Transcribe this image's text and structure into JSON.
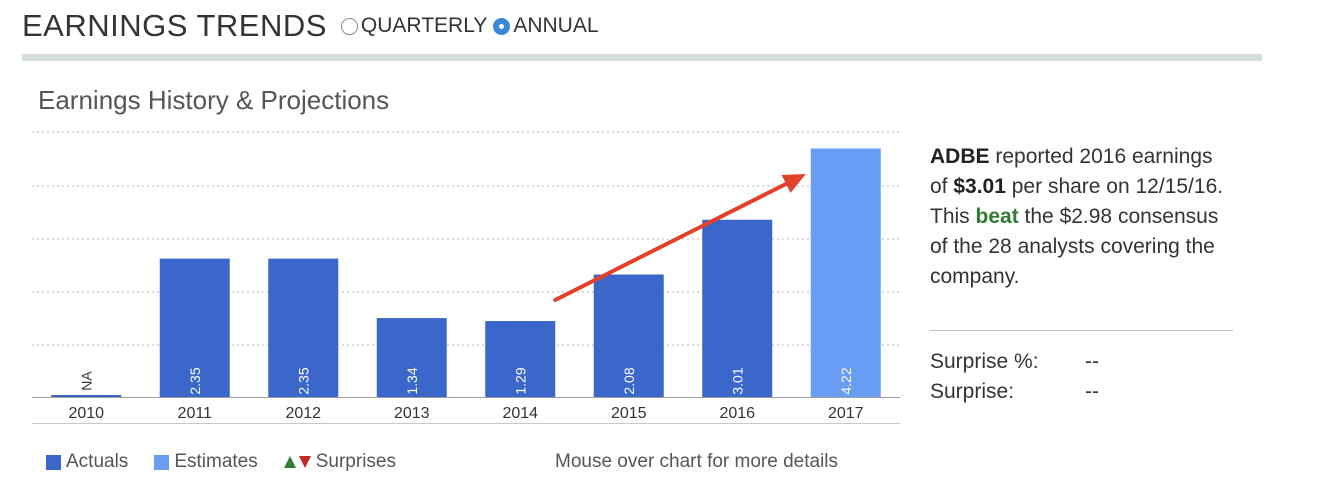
{
  "header": {
    "title": "EARNINGS TRENDS",
    "options": [
      {
        "label": "QUARTERLY",
        "checked": false
      },
      {
        "label": "ANNUAL",
        "checked": true
      }
    ]
  },
  "panel": {
    "title": "Earnings History & Projections"
  },
  "colors": {
    "actual": "#3a67c9",
    "estimate": "#699cf3",
    "annotation_arrow": "#e2402b",
    "beat": "#2e7d32",
    "surprise_up": "#2e7d32",
    "surprise_down": "#c62828"
  },
  "chart_data": {
    "type": "bar",
    "title": "Earnings History & Projections",
    "xlabel": "",
    "ylabel": "",
    "ylim": [
      0,
      4.5
    ],
    "grid": true,
    "categories": [
      "2010",
      "2011",
      "2012",
      "2013",
      "2014",
      "2015",
      "2016",
      "2017"
    ],
    "series": [
      {
        "name": "Actuals",
        "values": [
          null,
          2.35,
          2.35,
          1.34,
          1.29,
          2.08,
          3.01,
          null
        ]
      },
      {
        "name": "Estimates",
        "values": [
          null,
          null,
          null,
          null,
          null,
          null,
          null,
          4.22
        ]
      }
    ],
    "bar_labels": [
      "NA",
      "2.35",
      "2.35",
      "1.34",
      "1.29",
      "2.08",
      "3.01",
      "4.22"
    ],
    "annotation": "red upward trend arrow from 2014 toward 2017"
  },
  "summary": {
    "ticker": "ADBE",
    "text_1": " reported 2016 earnings of ",
    "eps": "$3.01",
    "text_2": " per share on 12/15/16. This ",
    "result": "beat",
    "text_3": " the $2.98 consensus of the 28 analysts covering the company."
  },
  "stats": {
    "surprise_pct_label": "Surprise %:",
    "surprise_pct_value": "--",
    "surprise_label": "Surprise:",
    "surprise_value": "--"
  },
  "legend": {
    "actuals": "Actuals",
    "estimates": "Estimates",
    "surprises": "Surprises"
  },
  "hint": "Mouse over chart for more details"
}
